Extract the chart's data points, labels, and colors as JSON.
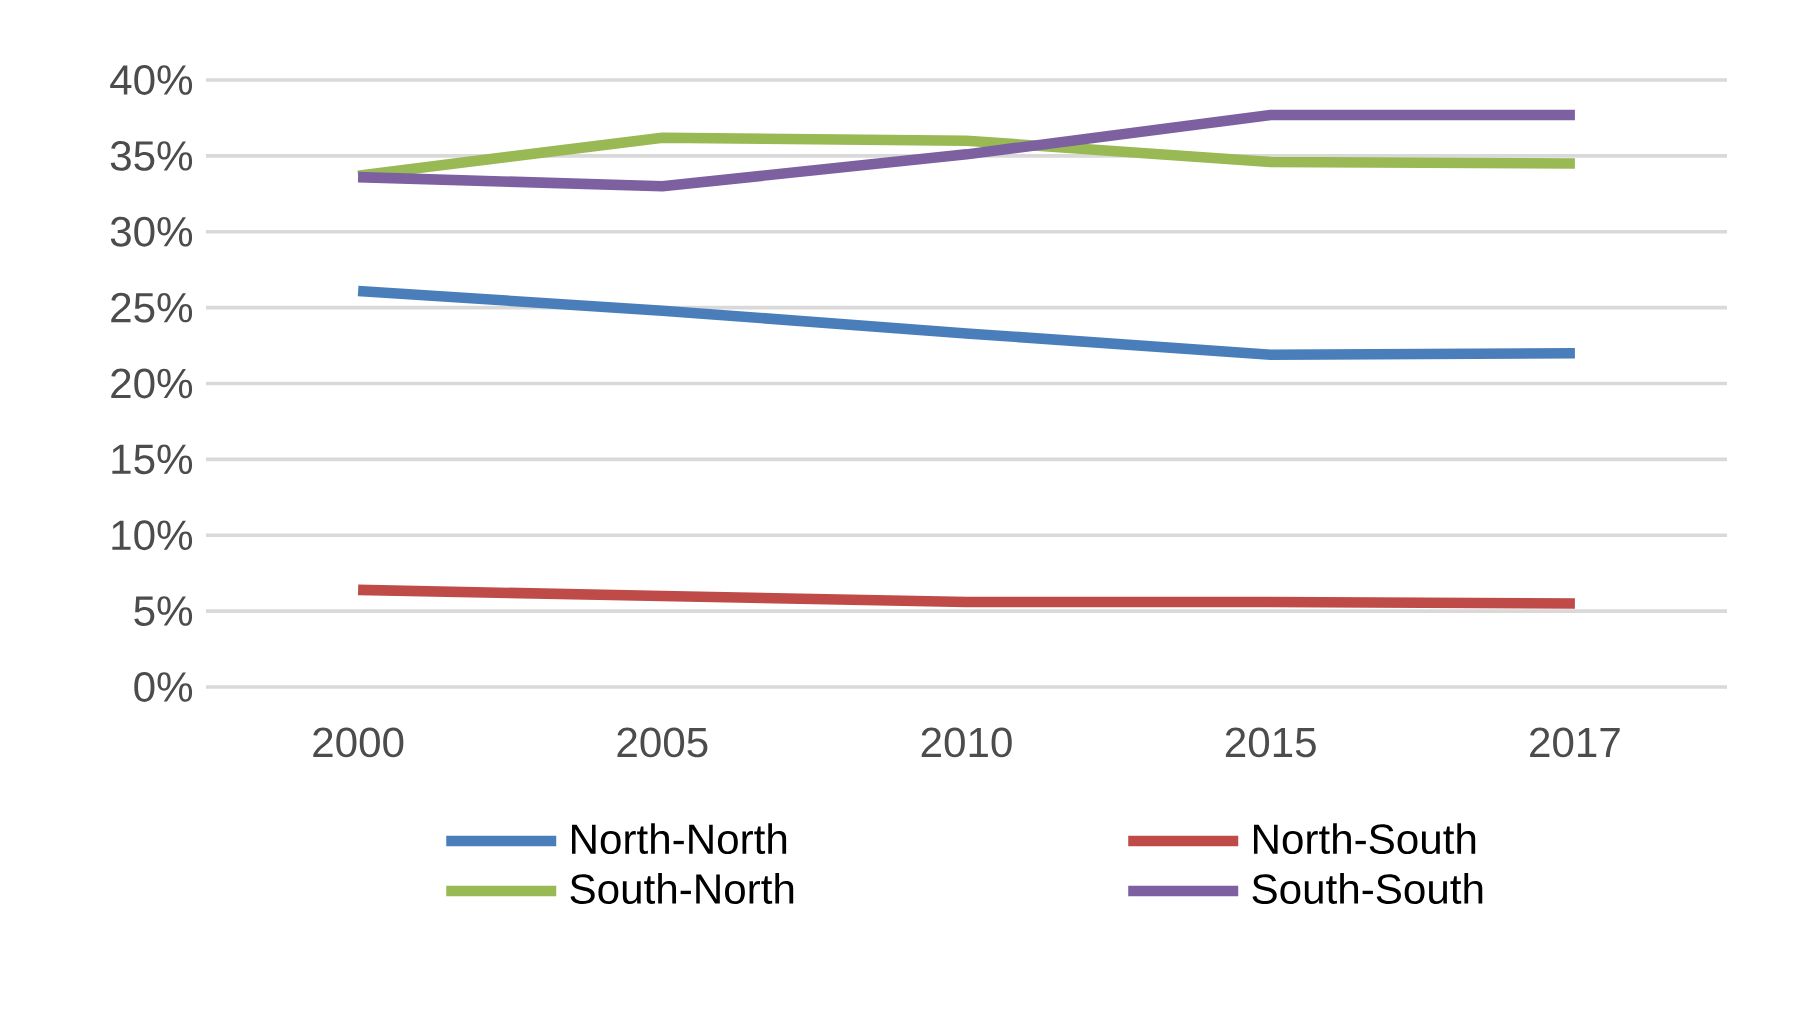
{
  "chart_data": {
    "type": "line",
    "categories": [
      "2000",
      "2005",
      "2010",
      "2015",
      "2017"
    ],
    "series": [
      {
        "name": "North-North",
        "color": "#4a7ebb",
        "values": [
          26.1,
          24.8,
          23.3,
          21.9,
          22.0
        ]
      },
      {
        "name": "North-South",
        "color": "#be4b48",
        "values": [
          6.4,
          6.0,
          5.6,
          5.6,
          5.5
        ]
      },
      {
        "name": "South-North",
        "color": "#98b954",
        "values": [
          33.7,
          36.2,
          36.0,
          34.6,
          34.5
        ]
      },
      {
        "name": "South-South",
        "color": "#7d60a0",
        "values": [
          33.6,
          33.0,
          35.1,
          37.7,
          37.7
        ]
      }
    ],
    "ylim": [
      0,
      40
    ],
    "yticks": [
      {
        "value": 0,
        "label": "0%"
      },
      {
        "value": 5,
        "label": "5%"
      },
      {
        "value": 10,
        "label": "10%"
      },
      {
        "value": 15,
        "label": "15%"
      },
      {
        "value": 20,
        "label": "20%"
      },
      {
        "value": 25,
        "label": "25%"
      },
      {
        "value": 30,
        "label": "30%"
      },
      {
        "value": 35,
        "label": "35%"
      },
      {
        "value": 40,
        "label": "40%"
      }
    ],
    "grid": "y",
    "legend": "bottom",
    "marker": "none",
    "line_style": "solid"
  }
}
